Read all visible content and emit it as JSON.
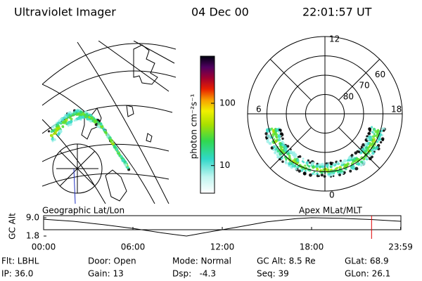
{
  "header": {
    "title": "Ultraviolet Imager",
    "date": "04 Dec 00",
    "time": "22:01:57 UT"
  },
  "colorbar": {
    "label": "photon cm⁻²s⁻¹",
    "log": true,
    "lim": [
      3.6,
      570
    ],
    "ticks": [
      10,
      100
    ]
  },
  "left_panel": {
    "caption": "Geographic Lat/Lon"
  },
  "right_panel": {
    "caption": "Apex MLat/MLT",
    "rlim": [
      50,
      90
    ],
    "mlt_labels": [
      12,
      18,
      6,
      0
    ],
    "lat_labels": [
      60,
      70,
      80
    ]
  },
  "chart_data": {
    "type": "line",
    "ylabel": "GC Alt",
    "x": [
      0,
      2,
      4,
      6,
      8,
      9.6,
      11,
      13,
      15,
      17,
      18,
      20,
      22,
      23.98
    ],
    "values": [
      8.4,
      7.6,
      6.3,
      4.8,
      3.0,
      1.8,
      3.3,
      5.3,
      7.4,
      8.7,
      9.0,
      8.8,
      8.3,
      7.6
    ],
    "color": "#000000",
    "ylim": [
      1.8,
      9.0
    ],
    "yticks": [
      {
        "value": 9.0,
        "label": "9.0"
      },
      {
        "value": 1.8,
        "label": "1.8"
      }
    ],
    "xlim": [
      0,
      24
    ],
    "xticks": [
      {
        "value": 0,
        "label": "00:00"
      },
      {
        "value": 6,
        "label": "06:00"
      },
      {
        "value": 12,
        "label": "12:00"
      },
      {
        "value": 18,
        "label": "18:00"
      },
      {
        "value": 23.98,
        "label": "23:59"
      }
    ],
    "marker": {
      "value": 22.03,
      "color": "#e00000"
    }
  },
  "footer": [
    [
      "Flt: LBHL",
      "Door: Open",
      "Mode: Normal",
      "GC Alt: 8.5 Re",
      "GLat: 68.9"
    ],
    [
      "IP: 36.0",
      "Gain: 13",
      "Dsp:   -4.3",
      "Seq: 39",
      "GLon: 26.1"
    ]
  ]
}
